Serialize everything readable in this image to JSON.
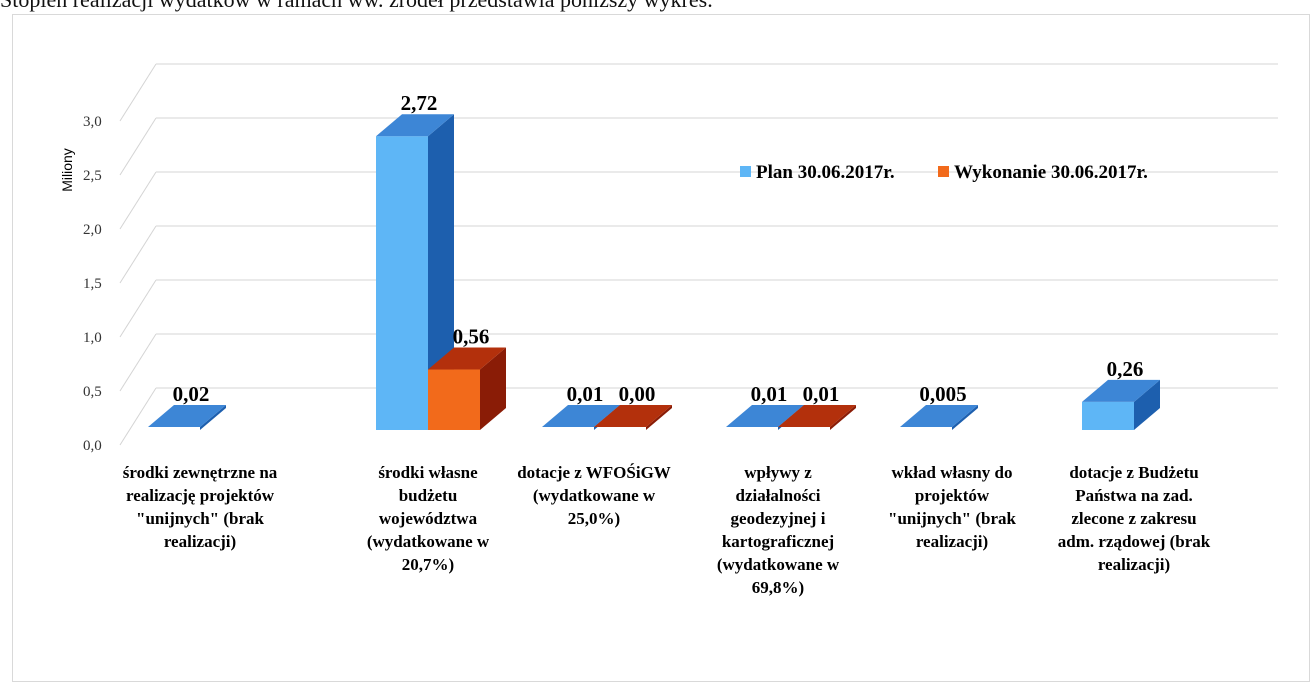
{
  "intro_text": "Stopień realizacji wydatków w ramach ww. źródeł przedstawia poniższy wykres.",
  "colors": {
    "plan_front": "#5eb6f6",
    "plan_side": "#1d5fae",
    "plan_top": "#3d86d6",
    "wyk_front": "#f26a1b",
    "wyk_side": "#8a1c06",
    "wyk_top": "#b3300c",
    "grid": "#d4d4d4"
  },
  "chart_data": {
    "type": "bar",
    "ylabel": "Miliony",
    "ylim": [
      0,
      3.0
    ],
    "yticks": [
      "0,0",
      "0,5",
      "1,0",
      "1,5",
      "2,0",
      "2,5",
      "3,0"
    ],
    "grid": true,
    "legend_position": "top-right",
    "categories": [
      [
        "środki zewnętrzne na",
        "realizację projektów",
        "\"unijnych\" (brak",
        "realizacji)"
      ],
      [
        "środki własne",
        "budżetu",
        "województwa",
        "(wydatkowane w",
        "20,7%)"
      ],
      [
        "dotacje z WFOŚiGW",
        "(wydatkowane w",
        "25,0%)"
      ],
      [
        "wpływy z",
        "działalności",
        "geodezyjnej i",
        "kartograficznej",
        "(wydatkowane w",
        "69,8%)"
      ],
      [
        "wkład własny do",
        "projektów",
        "\"unijnych\" (brak",
        "realizacji)"
      ],
      [
        "dotacje z Budżetu",
        "Państwa na zad.",
        "zlecone z zakresu",
        "adm. rządowej (brak",
        "realizacji)"
      ]
    ],
    "series": [
      {
        "name": "Plan 30.06.2017r.",
        "values": [
          0.02,
          2.72,
          0.01,
          0.01,
          0.005,
          0.26
        ],
        "labels": [
          "0,02",
          "2,72",
          "0,01",
          "0,01",
          "0,005",
          "0,26"
        ]
      },
      {
        "name": "Wykonanie 30.06.2017r.",
        "values": [
          null,
          0.56,
          0.0,
          0.01,
          null,
          null
        ],
        "labels": [
          "",
          "0,56",
          "0,00",
          "0,01",
          "",
          ""
        ]
      }
    ]
  }
}
